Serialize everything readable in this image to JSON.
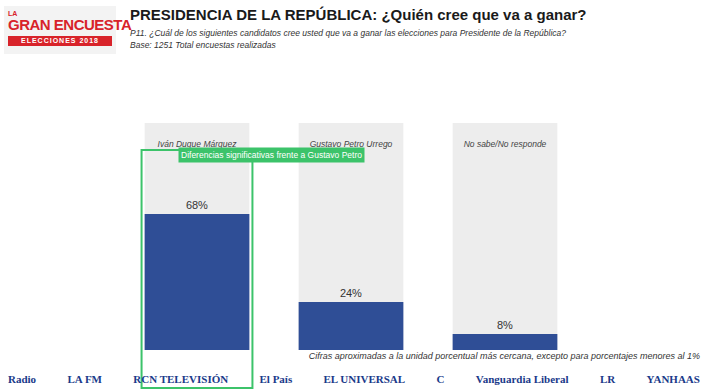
{
  "chart_data": {
    "type": "bar",
    "logo": {
      "top": "LA",
      "main": "GRAN ENCUESTA",
      "strip": "ELECCIONES 2018"
    },
    "title": "PRESIDENCIA DE LA REPÚBLICA: ¿Quién cree que va a ganar?",
    "subtitle": [
      "P11. ¿Cuál de los siguientes candidatos cree usted que va a ganar las elecciones para Presidente de la República?",
      "Base: 1251 Total encuestas realizadas"
    ],
    "categories": [
      "Iván Duque Márquez",
      "Gustavo Petro Urrego",
      "No sabe/No responde"
    ],
    "values": [
      68,
      24,
      8
    ],
    "value_labels": [
      "68%",
      "24%",
      "8%"
    ],
    "color": "#2f4e96",
    "ylim": [
      0,
      100
    ],
    "data_labels": true,
    "tick_labels": "x",
    "annotations": [
      "Diferencias significativas frente a Gustavo Petro"
    ],
    "notes": "Cifras aproximadas a la unidad porcentual más cercana, excepto para porcentajes menores al 1%",
    "logos": [
      "Radio",
      "LA FM",
      "RCN TELEVISIÓN",
      "El País",
      "EL UNIVERSAL",
      "C",
      "Vanguardia Liberal",
      "LR",
      "YANHAAS"
    ]
  }
}
